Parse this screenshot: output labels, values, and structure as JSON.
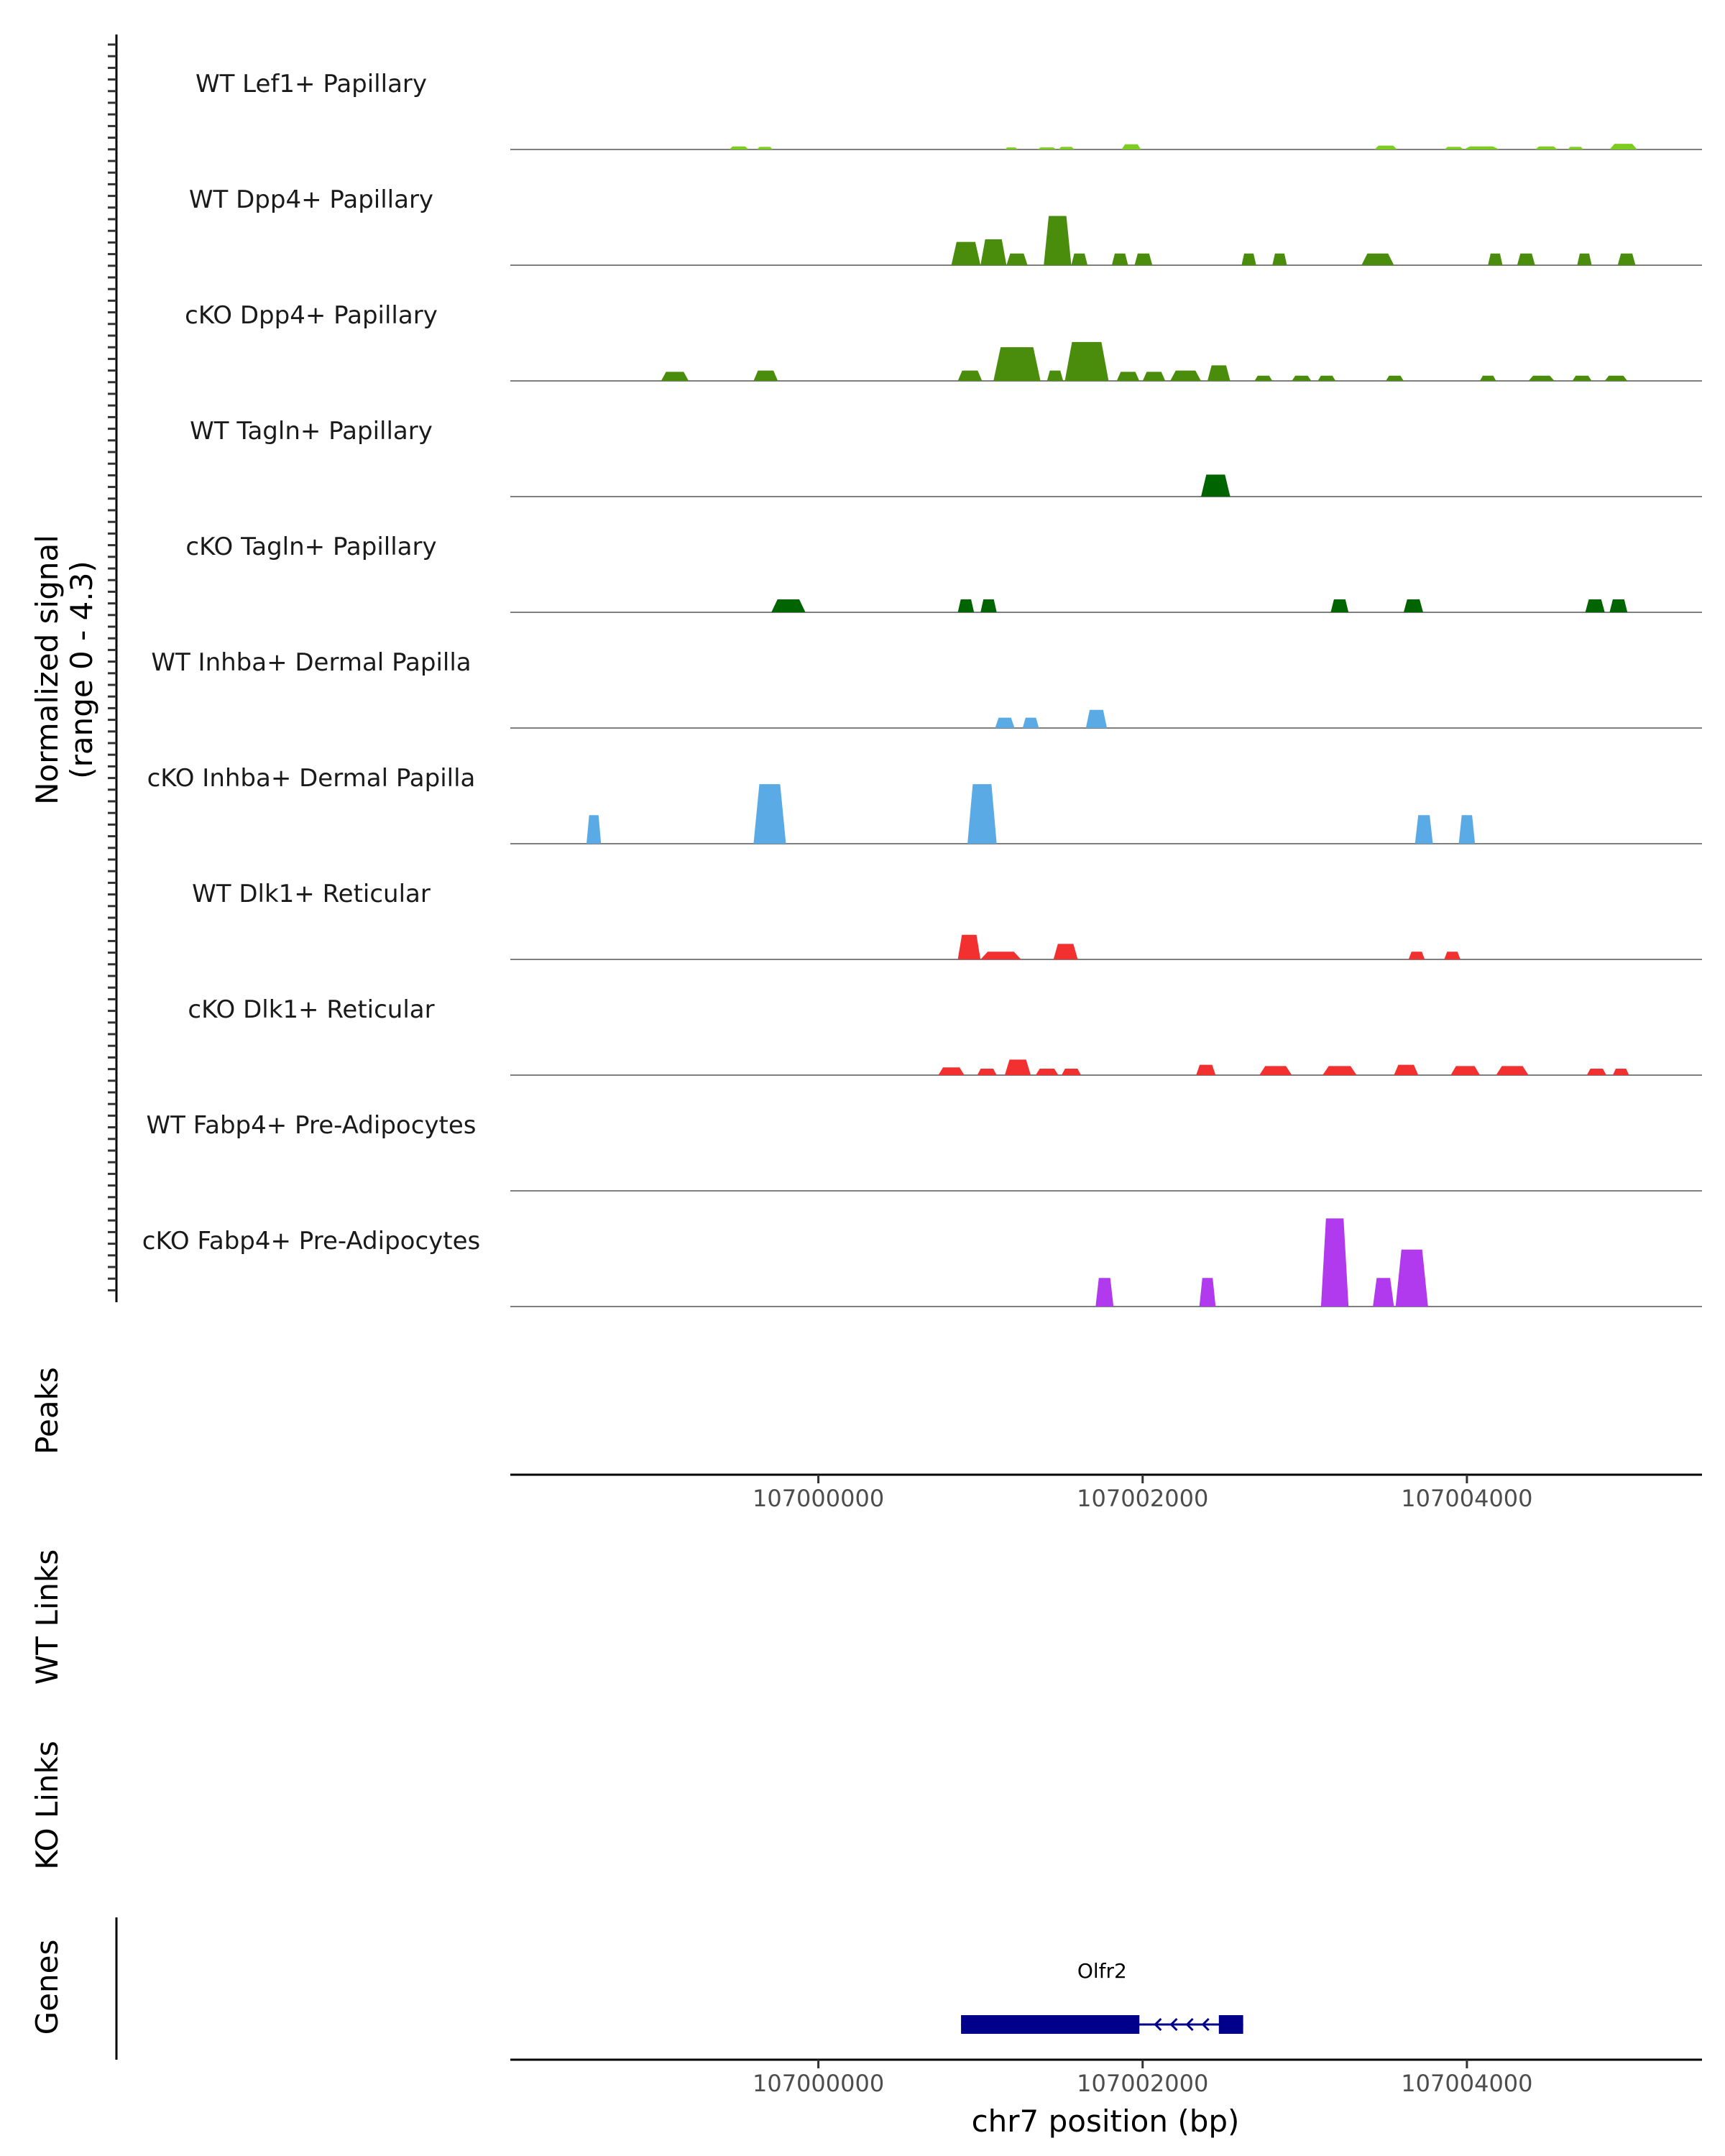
{
  "chart_data": {
    "type": "area",
    "title": "",
    "chromosome": "chr7",
    "xlim": [
      106998100,
      107005450
    ],
    "x_ticks": [
      "107000000",
      "107002000",
      "107004000"
    ],
    "signal_axis_title": "Normalized signal",
    "signal_axis_subtitle": "(range 0 - 4.3)",
    "signal_range": [
      0,
      4.3
    ],
    "tracks": [
      {
        "name": "WT Lef1+ Papillary",
        "color": "#7CCD1F",
        "peaks": [
          [
            106999450,
            106999570,
            0.12
          ],
          [
            106999620,
            106999720,
            0.1
          ],
          [
            107001150,
            107001230,
            0.08
          ],
          [
            107001350,
            107001470,
            0.08
          ],
          [
            107001480,
            107001580,
            0.1
          ],
          [
            107001870,
            107001990,
            0.2
          ],
          [
            107003430,
            107003570,
            0.15
          ],
          [
            107003860,
            107003980,
            0.1
          ],
          [
            107003980,
            107004200,
            0.12
          ],
          [
            107004420,
            107004560,
            0.12
          ],
          [
            107004620,
            107004720,
            0.1
          ],
          [
            107004880,
            107005050,
            0.22
          ]
        ]
      },
      {
        "name": "WT Dpp4+ Papillary",
        "color": "#4A8C0B",
        "peaks": [
          [
            107000820,
            107001000,
            0.9
          ],
          [
            107001000,
            107001160,
            1.0
          ],
          [
            107001160,
            107001290,
            0.45
          ],
          [
            107001390,
            107001560,
            1.9
          ],
          [
            107001560,
            107001660,
            0.45
          ],
          [
            107001810,
            107001910,
            0.45
          ],
          [
            107001950,
            107002060,
            0.45
          ],
          [
            107002610,
            107002700,
            0.45
          ],
          [
            107002800,
            107002890,
            0.45
          ],
          [
            107003350,
            107003550,
            0.45
          ],
          [
            107004130,
            107004220,
            0.45
          ],
          [
            107004310,
            107004420,
            0.45
          ],
          [
            107004680,
            107004770,
            0.45
          ],
          [
            107004930,
            107005040,
            0.45
          ]
        ]
      },
      {
        "name": "cKO Dpp4+ Papillary",
        "color": "#4A8C0B",
        "peaks": [
          [
            106999030,
            106999200,
            0.35
          ],
          [
            106999600,
            106999750,
            0.4
          ],
          [
            107000860,
            107001010,
            0.4
          ],
          [
            107001080,
            107001370,
            1.3
          ],
          [
            107001410,
            107001510,
            0.4
          ],
          [
            107001520,
            107001790,
            1.5
          ],
          [
            107001840,
            107001980,
            0.35
          ],
          [
            107002000,
            107002140,
            0.35
          ],
          [
            107002170,
            107002360,
            0.4
          ],
          [
            107002400,
            107002540,
            0.6
          ],
          [
            107002690,
            107002800,
            0.2
          ],
          [
            107002920,
            107003040,
            0.2
          ],
          [
            107003080,
            107003190,
            0.2
          ],
          [
            107003500,
            107003610,
            0.2
          ],
          [
            107004080,
            107004180,
            0.2
          ],
          [
            107004380,
            107004540,
            0.2
          ],
          [
            107004650,
            107004770,
            0.2
          ],
          [
            107004850,
            107004990,
            0.2
          ]
        ]
      },
      {
        "name": "WT Tagln+ Papillary",
        "color": "#006400",
        "peaks": [
          [
            107002360,
            107002540,
            0.85
          ]
        ]
      },
      {
        "name": "cKO Tagln+ Papillary",
        "color": "#006400",
        "peaks": [
          [
            106999710,
            106999920,
            0.5
          ],
          [
            107000860,
            107000960,
            0.5
          ],
          [
            107001000,
            107001100,
            0.5
          ],
          [
            107003160,
            107003270,
            0.5
          ],
          [
            107003610,
            107003730,
            0.5
          ],
          [
            107004730,
            107004850,
            0.5
          ],
          [
            107004880,
            107004990,
            0.5
          ]
        ]
      },
      {
        "name": "WT Inhba+ Dermal Papilla",
        "color": "#5AAAE6",
        "peaks": [
          [
            107001090,
            107001210,
            0.4
          ],
          [
            107001260,
            107001360,
            0.4
          ],
          [
            107001650,
            107001780,
            0.7
          ]
        ]
      },
      {
        "name": "cKO Inhba+ Dermal Papilla",
        "color": "#5AAAE6",
        "peaks": [
          [
            106998570,
            106998660,
            1.1
          ],
          [
            106999600,
            106999800,
            2.3
          ],
          [
            107000920,
            107001100,
            2.3
          ],
          [
            107003680,
            107003790,
            1.1
          ],
          [
            107003950,
            107004050,
            1.1
          ]
        ]
      },
      {
        "name": "WT Dlk1+ Reticular",
        "color": "#F23030",
        "peaks": [
          [
            107000860,
            107001000,
            0.95
          ],
          [
            107001000,
            107001250,
            0.3
          ],
          [
            107001450,
            107001600,
            0.6
          ],
          [
            107003640,
            107003740,
            0.3
          ],
          [
            107003860,
            107003960,
            0.3
          ]
        ]
      },
      {
        "name": "cKO Dlk1+ Reticular",
        "color": "#F23030",
        "peaks": [
          [
            107000740,
            107000900,
            0.3
          ],
          [
            107000980,
            107001100,
            0.25
          ],
          [
            107001150,
            107001310,
            0.6
          ],
          [
            107001340,
            107001480,
            0.25
          ],
          [
            107001500,
            107001620,
            0.25
          ],
          [
            107002330,
            107002450,
            0.4
          ],
          [
            107002720,
            107002920,
            0.35
          ],
          [
            107003110,
            107003320,
            0.35
          ],
          [
            107003550,
            107003700,
            0.4
          ],
          [
            107003900,
            107004080,
            0.35
          ],
          [
            107004180,
            107004380,
            0.35
          ],
          [
            107004740,
            107004860,
            0.25
          ],
          [
            107004900,
            107005000,
            0.25
          ]
        ]
      },
      {
        "name": "WT Fabp4+ Pre-Adipocytes",
        "color": "#B23AEE",
        "peaks": []
      },
      {
        "name": "cKO Fabp4+ Pre-Adipocytes",
        "color": "#B23AEE",
        "peaks": [
          [
            107001710,
            107001820,
            1.1
          ],
          [
            107002350,
            107002450,
            1.1
          ],
          [
            107003100,
            107003270,
            3.4
          ],
          [
            107003420,
            107003550,
            1.1
          ],
          [
            107003560,
            107003760,
            2.2
          ]
        ]
      }
    ],
    "peaks_track_label": "Peaks",
    "links_tracks": [
      "WT Links",
      "KO Links"
    ],
    "genes_track_label": "Genes",
    "genes": [
      {
        "name": "Olfr2",
        "start": 107000880,
        "end": 107002620,
        "strand": "-",
        "exons": [
          [
            107000880,
            107001980
          ],
          [
            107002470,
            107002620
          ]
        ]
      }
    ],
    "xlabel": "chr7 position (bp)"
  }
}
